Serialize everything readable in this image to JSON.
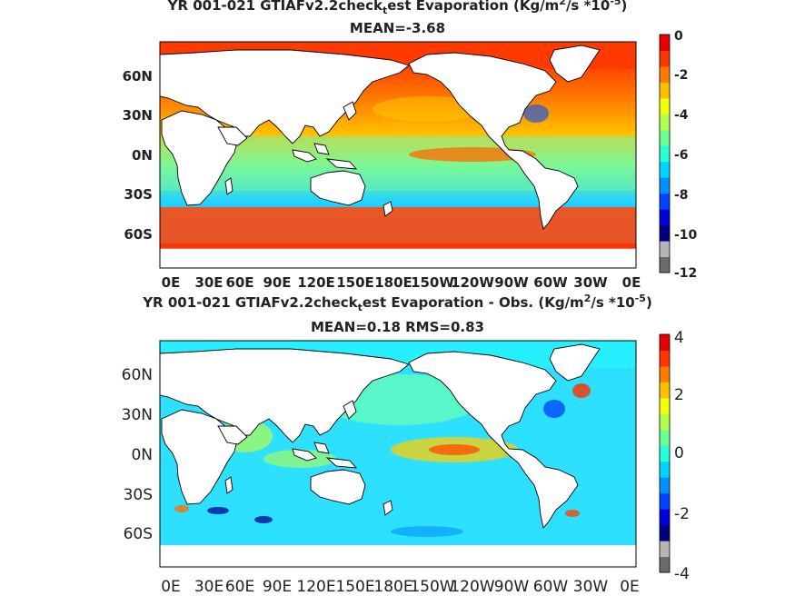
{
  "panel1": {
    "title_pre": "YR 001-021 GTIAFv2.2check",
    "title_sub": "t",
    "title_post": "est  Evaporation (Kg/m",
    "title_sup": "2",
    "title_end": "/s *10",
    "title_sup2": "-5",
    "title_close": ")",
    "stats": "MEAN=-3.68",
    "colorbar_ticks": [
      "0",
      "-2",
      "-4",
      "-6",
      "-8",
      "-10",
      "-12"
    ]
  },
  "panel2": {
    "title_pre": "YR 001-021 GTIAFv2.2check",
    "title_sub": "t",
    "title_post": "est Evaporation - Obs. (Kg/m",
    "title_sup": "2",
    "title_end": "/s *10",
    "title_sup2": "-5",
    "title_close": ")",
    "stats": "MEAN=0.18   RMS=0.83",
    "colorbar_ticks": [
      "4",
      "2",
      "0",
      "-2",
      "-4"
    ]
  },
  "axes": {
    "lat_ticks": [
      "60N",
      "30N",
      "0N",
      "30S",
      "60S"
    ],
    "lon_ticks": [
      "0E",
      "30E",
      "60E",
      "90E",
      "120E",
      "150E",
      "180E",
      "150W",
      "120W",
      "90W",
      "60W",
      "30W",
      "0E"
    ]
  },
  "colors": {
    "colormap": [
      "#6b6b6b",
      "#b5b5b5",
      "#00007f",
      "#0000d8",
      "#0044ff",
      "#0090ff",
      "#00d4ff",
      "#26ffd8",
      "#6bff94",
      "#b1ff4e",
      "#f4ff0a",
      "#ffc000",
      "#ff7a00",
      "#ff3500",
      "#e80000"
    ]
  }
}
